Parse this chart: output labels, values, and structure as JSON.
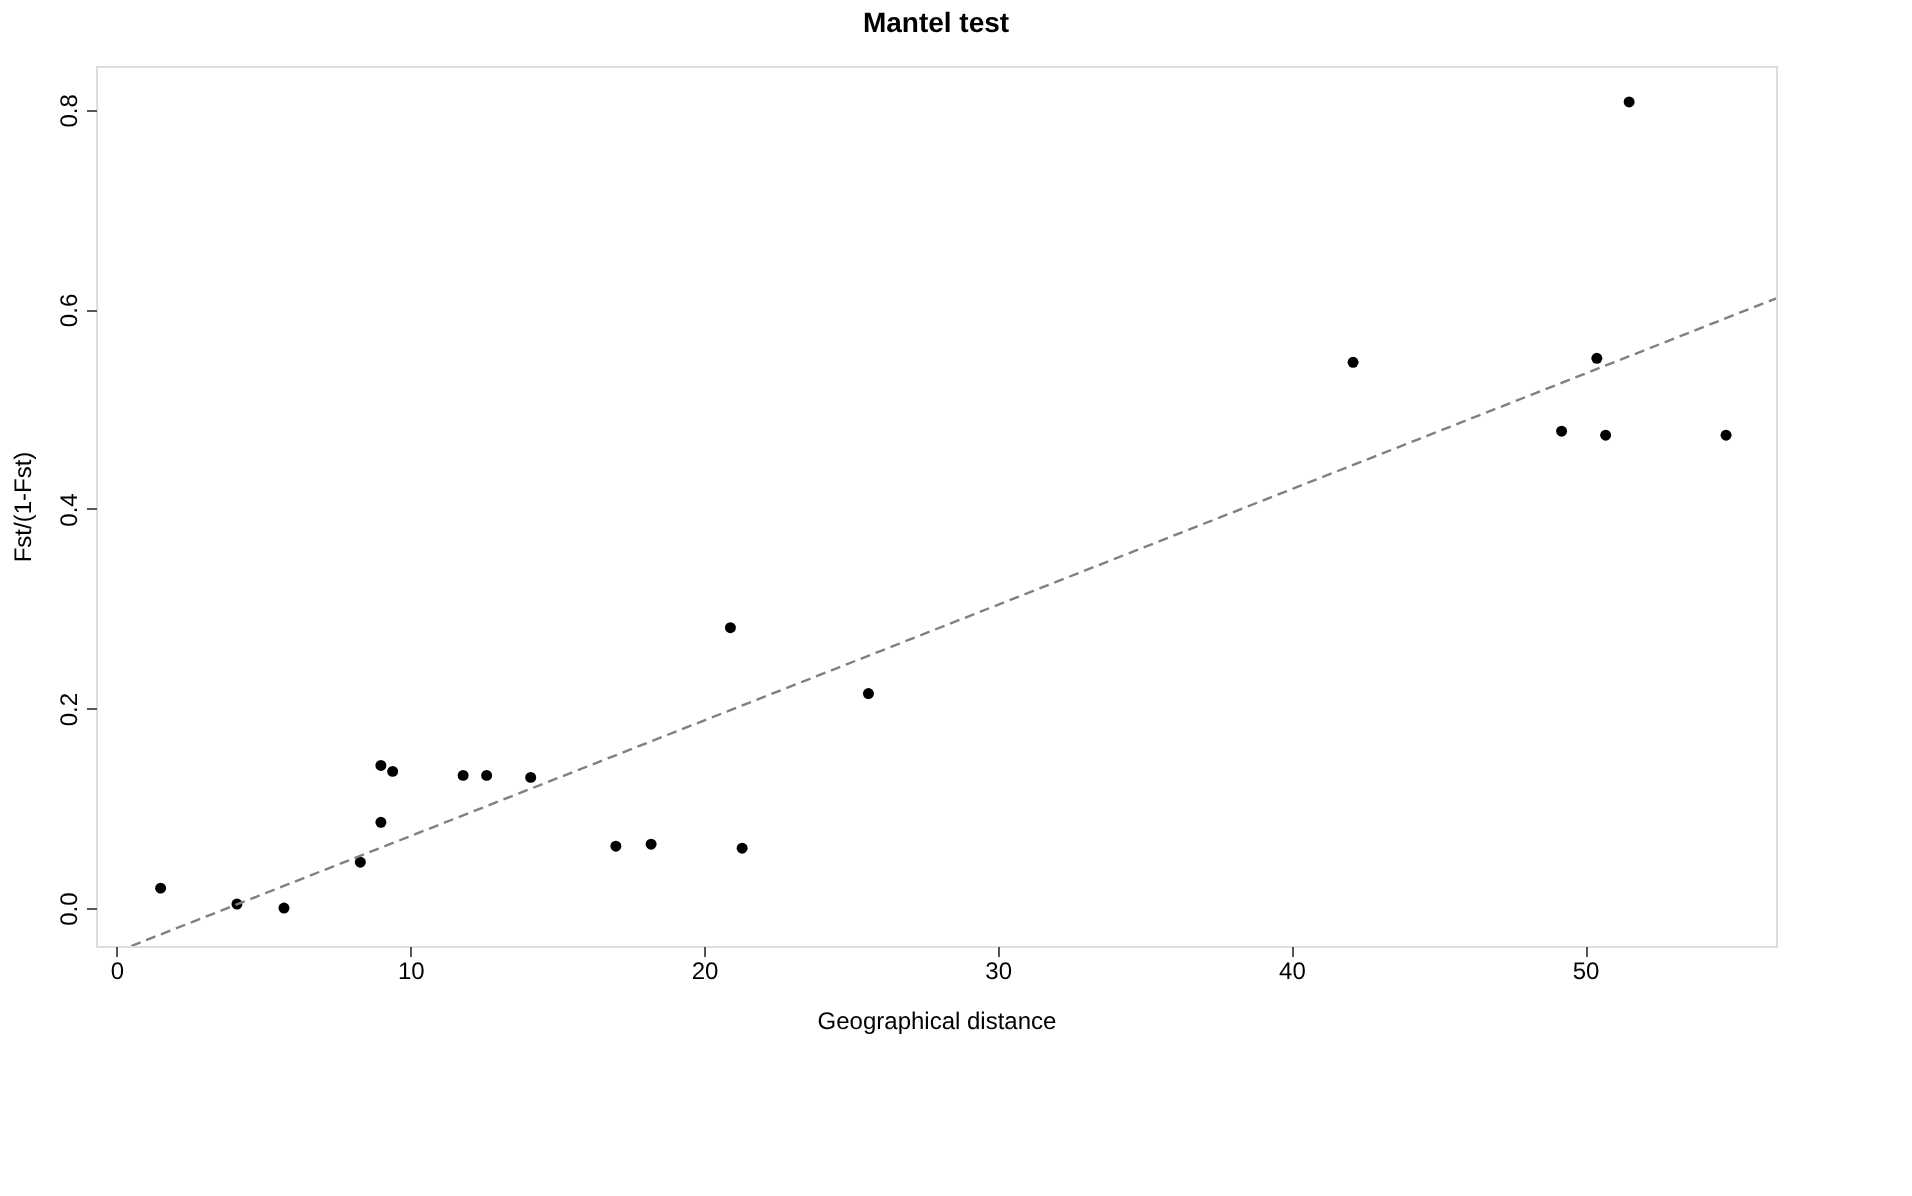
{
  "chart_data": {
    "type": "scatter",
    "title": "Mantel test",
    "xlabel": "Geographical distance",
    "ylabel": "Fst/(1-Fst)",
    "xlim": [
      -0.7,
      56.5
    ],
    "ylim": [
      -0.038,
      0.844
    ],
    "xticks": [
      0,
      10,
      20,
      30,
      40,
      50
    ],
    "yticks": [
      {
        "value": 0,
        "label": "0.0"
      },
      {
        "value": 0.2,
        "label": "0.2"
      },
      {
        "value": 0.4,
        "label": "0.4"
      },
      {
        "value": 0.6,
        "label": "0.6"
      },
      {
        "value": 0.8,
        "label": "0.8"
      }
    ],
    "grid": false,
    "series": [
      {
        "marker": "circle",
        "color": "#000000",
        "x": [
          1.5,
          4.1,
          5.7,
          8.3,
          9.0,
          9.0,
          9.4,
          11.8,
          12.6,
          14.1,
          17.0,
          18.2,
          20.9,
          21.3,
          25.6,
          42.1,
          49.2,
          50.4,
          50.7,
          51.5,
          54.8
        ],
        "values": [
          0.02,
          0.004,
          0.0,
          0.046,
          0.086,
          0.143,
          0.137,
          0.133,
          0.133,
          0.131,
          0.062,
          0.064,
          0.281,
          0.06,
          0.215,
          0.547,
          0.478,
          0.551,
          0.474,
          0.808,
          0.474
        ]
      },
      {
        "type": "line",
        "color": "#808080",
        "line_style": "dashed",
        "x": [
          0.5,
          56.5
        ],
        "values": [
          -0.038,
          0.611
        ]
      }
    ]
  }
}
